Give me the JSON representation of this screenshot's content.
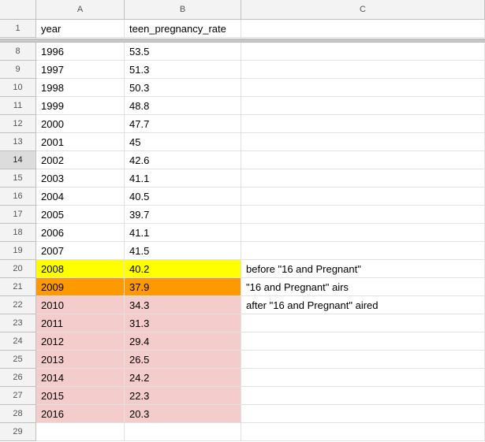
{
  "columns": [
    "A",
    "B",
    "C"
  ],
  "header_row": {
    "num": "1",
    "a": "year",
    "b": "teen_pregnancy_rate",
    "c": ""
  },
  "rows": [
    {
      "num": "8",
      "a": "1996",
      "b": "53.5",
      "c": "",
      "fill": ""
    },
    {
      "num": "9",
      "a": "1997",
      "b": "51.3",
      "c": "",
      "fill": ""
    },
    {
      "num": "10",
      "a": "1998",
      "b": "50.3",
      "c": "",
      "fill": ""
    },
    {
      "num": "11",
      "a": "1999",
      "b": "48.8",
      "c": "",
      "fill": ""
    },
    {
      "num": "12",
      "a": "2000",
      "b": "47.7",
      "c": "",
      "fill": ""
    },
    {
      "num": "13",
      "a": "2001",
      "b": "45",
      "c": "",
      "fill": ""
    },
    {
      "num": "14",
      "a": "2002",
      "b": "42.6",
      "c": "",
      "fill": "",
      "active": true
    },
    {
      "num": "15",
      "a": "2003",
      "b": "41.1",
      "c": "",
      "fill": ""
    },
    {
      "num": "16",
      "a": "2004",
      "b": "40.5",
      "c": "",
      "fill": ""
    },
    {
      "num": "17",
      "a": "2005",
      "b": "39.7",
      "c": "",
      "fill": ""
    },
    {
      "num": "18",
      "a": "2006",
      "b": "41.1",
      "c": "",
      "fill": ""
    },
    {
      "num": "19",
      "a": "2007",
      "b": "41.5",
      "c": "",
      "fill": ""
    },
    {
      "num": "20",
      "a": "2008",
      "b": "40.2",
      "c": "before \"16 and Pregnant\"",
      "fill": "#ffff00"
    },
    {
      "num": "21",
      "a": "2009",
      "b": "37.9",
      "c": "\"16 and Pregnant\" airs",
      "fill": "#ff9900"
    },
    {
      "num": "22",
      "a": "2010",
      "b": "34.3",
      "c": "after \"16 and Pregnant\" aired",
      "fill": "#f4cccc"
    },
    {
      "num": "23",
      "a": "2011",
      "b": "31.3",
      "c": "",
      "fill": "#f4cccc"
    },
    {
      "num": "24",
      "a": "2012",
      "b": "29.4",
      "c": "",
      "fill": "#f4cccc"
    },
    {
      "num": "25",
      "a": "2013",
      "b": "26.5",
      "c": "",
      "fill": "#f4cccc"
    },
    {
      "num": "26",
      "a": "2014",
      "b": "24.2",
      "c": "",
      "fill": "#f4cccc"
    },
    {
      "num": "27",
      "a": "2015",
      "b": "22.3",
      "c": "",
      "fill": "#f4cccc"
    },
    {
      "num": "28",
      "a": "2016",
      "b": "20.3",
      "c": "",
      "fill": "#f4cccc"
    },
    {
      "num": "29",
      "a": "",
      "b": "",
      "c": "",
      "fill": ""
    }
  ]
}
